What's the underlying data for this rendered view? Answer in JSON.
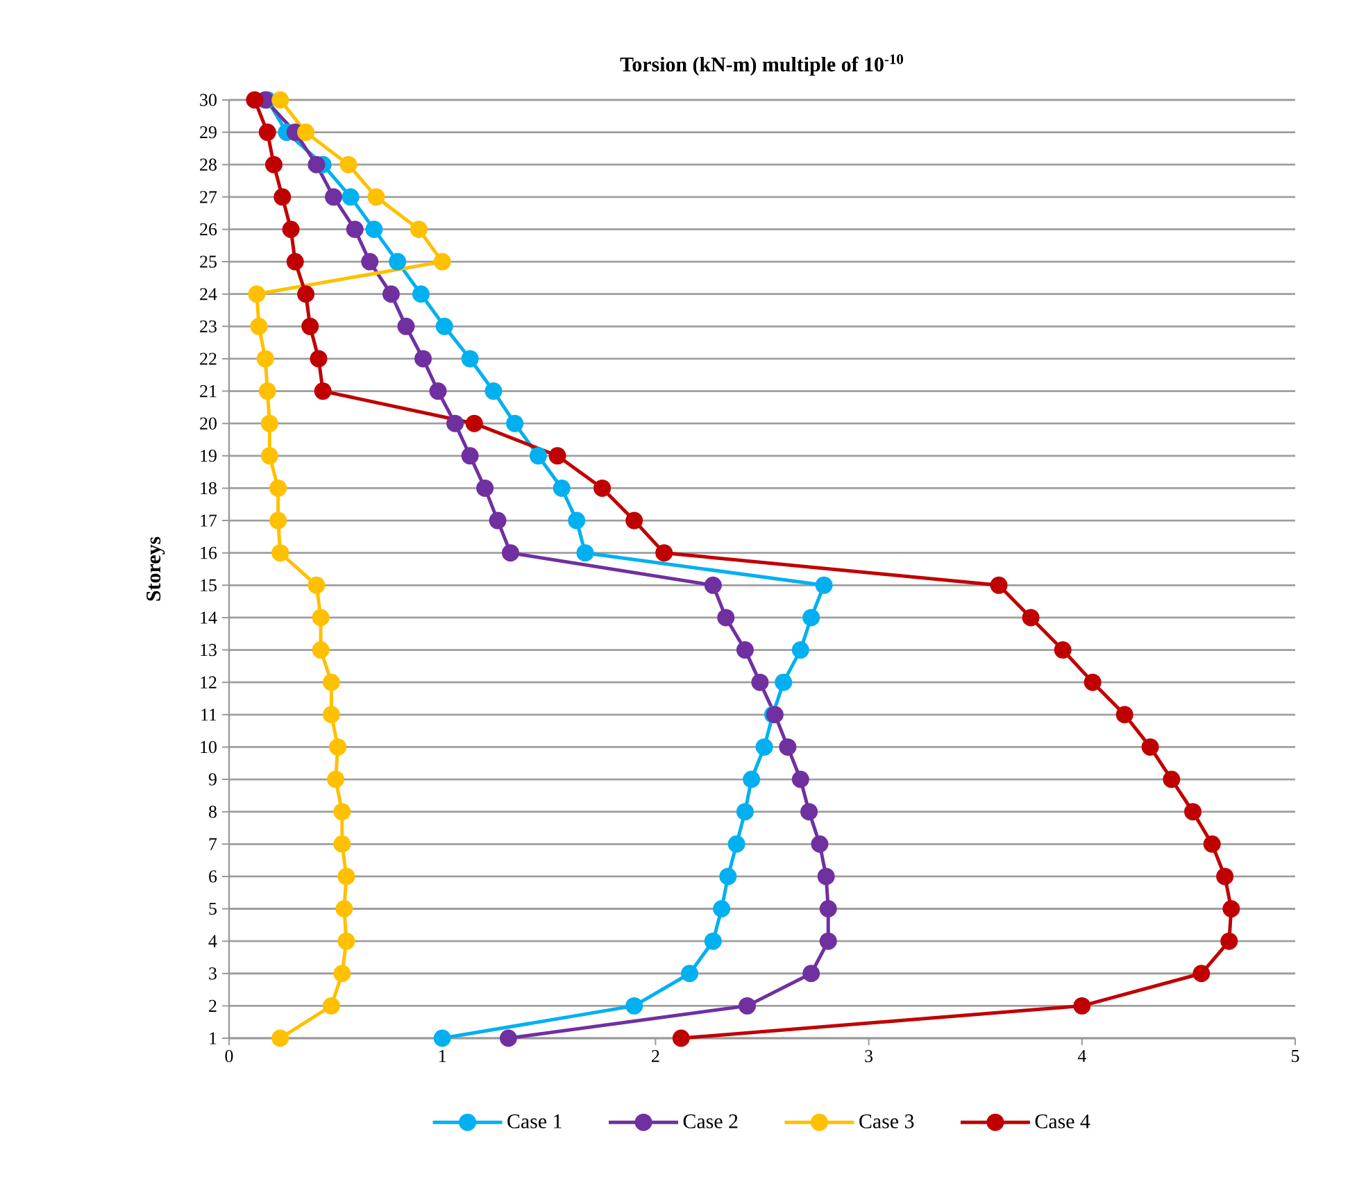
{
  "chart_data": {
    "type": "line",
    "title": "Torsion (kN-m) multiple of 10$^{-10}$",
    "ylabel": "Storeys",
    "xlim": [
      0,
      5
    ],
    "xticks": [
      0,
      1,
      2,
      3,
      4,
      5
    ],
    "ylim": [
      1,
      30
    ],
    "yticks": [
      1,
      2,
      3,
      4,
      5,
      6,
      7,
      8,
      9,
      10,
      11,
      12,
      13,
      14,
      15,
      16,
      17,
      18,
      19,
      20,
      21,
      22,
      23,
      24,
      25,
      26,
      27,
      28,
      29,
      30
    ],
    "grid": "y",
    "legend": "bottom",
    "marker": "circle",
    "line_style": "solid",
    "series": [
      {
        "name": "Case 1",
        "color": "#00b0f0",
        "x": [
          1.0,
          1.9,
          2.16,
          2.27,
          2.31,
          2.34,
          2.38,
          2.42,
          2.45,
          2.51,
          2.55,
          2.6,
          2.68,
          2.73,
          2.79,
          1.67,
          1.63,
          1.56,
          1.45,
          1.34,
          1.24,
          1.13,
          1.01,
          0.9,
          0.79,
          0.68,
          0.57,
          0.44,
          0.27,
          0.18
        ],
        "values": [
          1,
          2,
          3,
          4,
          5,
          6,
          7,
          8,
          9,
          10,
          11,
          12,
          13,
          14,
          15,
          16,
          17,
          18,
          19,
          20,
          21,
          22,
          23,
          24,
          25,
          26,
          27,
          28,
          29,
          30
        ]
      },
      {
        "name": "Case 2",
        "color": "#7030a0",
        "x": [
          1.31,
          2.43,
          2.73,
          2.81,
          2.81,
          2.8,
          2.77,
          2.72,
          2.68,
          2.62,
          2.56,
          2.49,
          2.42,
          2.33,
          2.27,
          1.32,
          1.26,
          1.2,
          1.13,
          1.06,
          0.98,
          0.91,
          0.83,
          0.76,
          0.66,
          0.59,
          0.49,
          0.41,
          0.31,
          0.17
        ],
        "values": [
          1,
          2,
          3,
          4,
          5,
          6,
          7,
          8,
          9,
          10,
          11,
          12,
          13,
          14,
          15,
          16,
          17,
          18,
          19,
          20,
          21,
          22,
          23,
          24,
          25,
          26,
          27,
          28,
          29,
          30
        ]
      },
      {
        "name": "Case 3",
        "color": "#ffc000",
        "x": [
          0.24,
          0.48,
          0.53,
          0.55,
          0.54,
          0.55,
          0.53,
          0.53,
          0.5,
          0.51,
          0.48,
          0.48,
          0.43,
          0.43,
          0.41,
          0.24,
          0.23,
          0.23,
          0.19,
          0.19,
          0.18,
          0.17,
          0.14,
          0.13,
          1.0,
          0.89,
          0.69,
          0.56,
          0.36,
          0.24
        ],
        "values": [
          1,
          2,
          3,
          4,
          5,
          6,
          7,
          8,
          9,
          10,
          11,
          12,
          13,
          14,
          15,
          16,
          17,
          18,
          19,
          20,
          21,
          22,
          23,
          24,
          25,
          26,
          27,
          28,
          29,
          30
        ]
      },
      {
        "name": "Case 4",
        "color": "#c00000",
        "x": [
          2.12,
          4.0,
          4.56,
          4.69,
          4.7,
          4.67,
          4.61,
          4.52,
          4.42,
          4.32,
          4.2,
          4.05,
          3.91,
          3.76,
          3.61,
          2.04,
          1.9,
          1.75,
          1.54,
          1.15,
          0.44,
          0.42,
          0.38,
          0.36,
          0.31,
          0.29,
          0.25,
          0.21,
          0.18,
          0.12
        ],
        "values": [
          1,
          2,
          3,
          4,
          5,
          6,
          7,
          8,
          9,
          10,
          11,
          12,
          13,
          14,
          15,
          16,
          17,
          18,
          19,
          20,
          21,
          22,
          23,
          24,
          25,
          26,
          27,
          28,
          29,
          30
        ]
      }
    ]
  }
}
